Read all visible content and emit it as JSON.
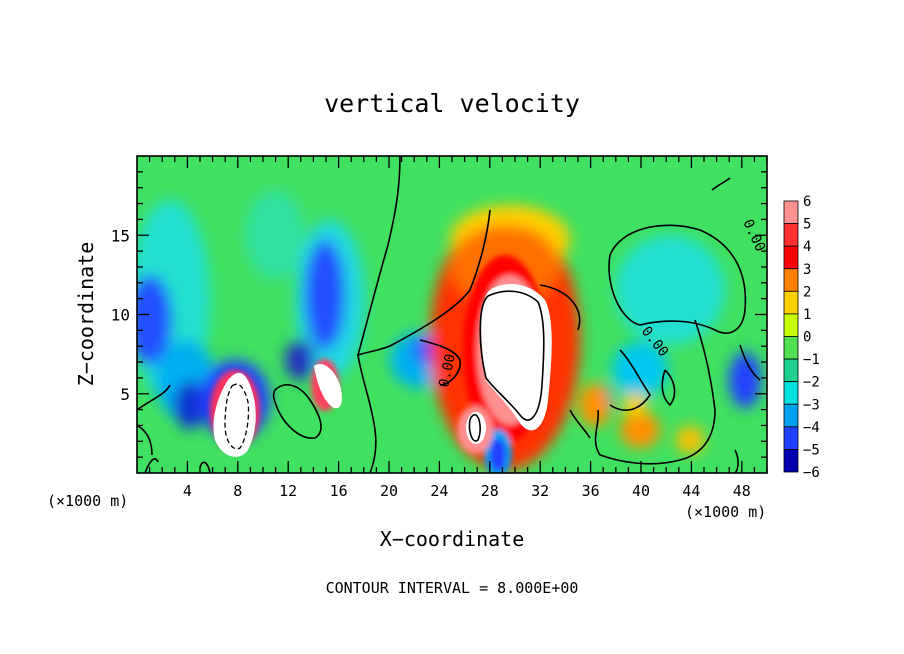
{
  "chart_data": {
    "type": "heatmap",
    "title": "vertical velocity",
    "xlabel": "X−coordinate",
    "ylabel": "Z−coordinate",
    "x_unit_left": "(×1000 m)",
    "x_unit_right": "(×1000 m)",
    "footer": "CONTOUR INTERVAL = 8.000E+00",
    "xlim": [
      0,
      50
    ],
    "ylim": [
      0,
      20
    ],
    "x_ticks": [
      4,
      8,
      12,
      16,
      20,
      24,
      28,
      32,
      36,
      40,
      44,
      48
    ],
    "y_ticks": [
      5,
      10,
      15
    ],
    "contour_labels": [
      "0.00",
      "0.00",
      "0.00"
    ],
    "colorbar": {
      "levels": [
        6,
        5,
        4,
        3,
        2,
        1,
        0,
        -1,
        -2,
        -3,
        -4,
        -5,
        -6
      ],
      "colors": [
        "#ff9090",
        "#ff3030",
        "#ff0000",
        "#ff8000",
        "#ffd000",
        "#c8ff00",
        "#50e050",
        "#20d090",
        "#00e0e0",
        "#00a0f0",
        "#2040ff",
        "#0000b0",
        "#7000b0"
      ]
    },
    "features": [
      {
        "name": "updraft core",
        "x": 29.5,
        "z": 9.0,
        "value": "> 6"
      },
      {
        "name": "updraft low",
        "x": 7.8,
        "z": 3.5,
        "value": "> 6"
      },
      {
        "name": "updraft",
        "x": 15.5,
        "z": 6.0,
        "value": "> 6"
      },
      {
        "name": "downdraft",
        "x": 0.5,
        "z": 10.0,
        "value": "-5"
      },
      {
        "name": "downdraft",
        "x": 14.5,
        "z": 10.5,
        "value": "-5"
      },
      {
        "name": "downdraft",
        "x": 27.8,
        "z": 1.5,
        "value": "-5"
      },
      {
        "name": "downdraft",
        "x": 47.8,
        "z": 5.5,
        "value": "-5"
      }
    ]
  }
}
